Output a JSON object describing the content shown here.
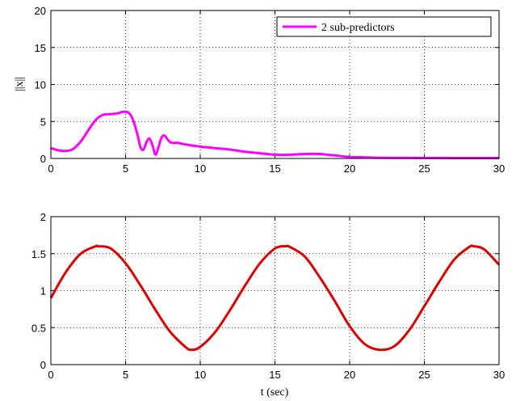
{
  "chart_data": [
    {
      "type": "line",
      "ylabel": "||x||",
      "xlabel": "",
      "xlim": [
        0,
        30
      ],
      "ylim": [
        0,
        20
      ],
      "xticks": [
        "0",
        "5",
        "10",
        "15",
        "20",
        "25",
        "30"
      ],
      "yticks": [
        "0",
        "5",
        "10",
        "15",
        "20"
      ],
      "grid": true,
      "legend_position": "top-right",
      "series": [
        {
          "name": "2 sub-predictors",
          "color": "#ff00ff",
          "x": [
            0,
            0.5,
            1,
            1.5,
            2,
            2.5,
            3,
            3.5,
            4,
            4.5,
            4.8,
            5.2,
            5.5,
            5.8,
            6.0,
            6.2,
            6.4,
            6.6,
            6.8,
            7.0,
            7.2,
            7.4,
            7.6,
            7.8,
            8.0,
            8.2,
            8.5,
            9,
            10,
            11,
            12,
            13,
            14,
            15,
            16,
            17,
            18,
            19,
            20,
            21,
            22,
            24,
            26,
            28,
            30
          ],
          "y": [
            1.4,
            1.1,
            1.0,
            1.3,
            2.3,
            3.8,
            5.2,
            5.9,
            6.0,
            6.1,
            6.3,
            6.2,
            5.2,
            3.2,
            1.5,
            1.2,
            2.2,
            2.7,
            1.8,
            0.5,
            1.5,
            2.8,
            3.1,
            2.6,
            2.2,
            2.1,
            2.1,
            1.9,
            1.6,
            1.4,
            1.2,
            0.9,
            0.7,
            0.5,
            0.5,
            0.6,
            0.6,
            0.4,
            0.2,
            0.15,
            0.1,
            0.08,
            0.07,
            0.05,
            0.05
          ]
        }
      ]
    },
    {
      "type": "line",
      "ylabel": "",
      "xlabel": "t (sec)",
      "xlim": [
        0,
        30
      ],
      "ylim": [
        0,
        2
      ],
      "xticks": [
        "0",
        "5",
        "10",
        "15",
        "20",
        "25",
        "30"
      ],
      "yticks": [
        "0",
        "0.5",
        "1",
        "1.5",
        "2"
      ],
      "grid": true,
      "series": [
        {
          "color": "#dd0000",
          "x": [
            0,
            1,
            2,
            3,
            3.15,
            4,
            5,
            6,
            7,
            8,
            9,
            9.4,
            10,
            11,
            12,
            13,
            14,
            15,
            15.7,
            16,
            17,
            18,
            19,
            20,
            21,
            22,
            23,
            24,
            25,
            26,
            27,
            28,
            28.3,
            29,
            30
          ],
          "y": [
            0.9,
            1.25,
            1.5,
            1.6,
            1.6,
            1.57,
            1.37,
            1.07,
            0.74,
            0.44,
            0.24,
            0.2,
            0.24,
            0.44,
            0.74,
            1.07,
            1.37,
            1.57,
            1.6,
            1.59,
            1.46,
            1.18,
            0.86,
            0.52,
            0.28,
            0.2,
            0.25,
            0.47,
            0.79,
            1.12,
            1.42,
            1.59,
            1.6,
            1.56,
            1.35
          ]
        }
      ]
    }
  ]
}
